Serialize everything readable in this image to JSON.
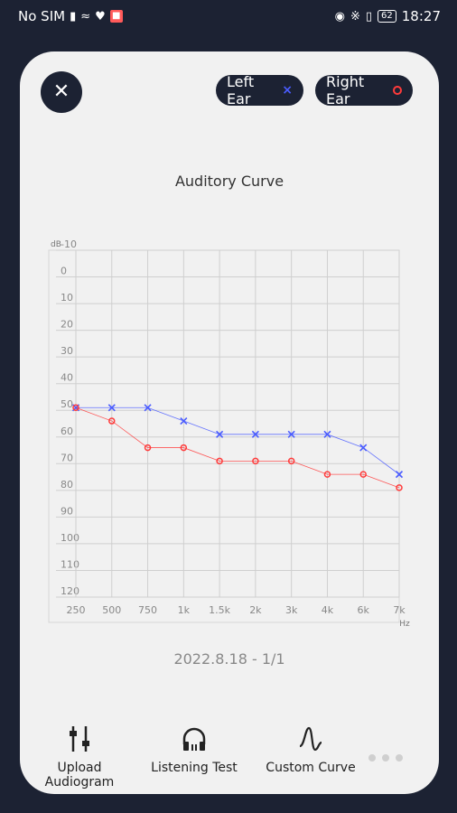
{
  "status_bar": {
    "carrier": "No SIM",
    "battery": "62",
    "time": "18:27"
  },
  "header": {
    "left_ear_label": "Left Ear",
    "right_ear_label": "Right Ear"
  },
  "chart_data": {
    "type": "line",
    "title": "Auditory Curve",
    "ylabel": "dB",
    "xlabel": "Hz",
    "categories": [
      "250",
      "500",
      "750",
      "1k",
      "1.5k",
      "2k",
      "3k",
      "4k",
      "6k",
      "7k"
    ],
    "y_ticks": [
      "-10",
      "0",
      "10",
      "20",
      "30",
      "40",
      "50",
      "60",
      "70",
      "80",
      "90",
      "100",
      "110",
      "120"
    ],
    "ylim": [
      -10,
      120
    ],
    "y_inverted": true,
    "grid": true,
    "series": [
      {
        "name": "Left Ear",
        "color": "#4a5cff",
        "marker": "x",
        "values": [
          49,
          49,
          49,
          54,
          59,
          59,
          59,
          59,
          64,
          74
        ]
      },
      {
        "name": "Right Ear",
        "color": "#ff3b3b",
        "marker": "o",
        "values": [
          49,
          54,
          64,
          64,
          69,
          69,
          69,
          74,
          74,
          79
        ]
      }
    ]
  },
  "date_label": "2022.8.18 - 1/1",
  "tools": {
    "upload_label": "Upload Audiogram",
    "listening_label": "Listening Test",
    "custom_label": "Custom Curve"
  }
}
